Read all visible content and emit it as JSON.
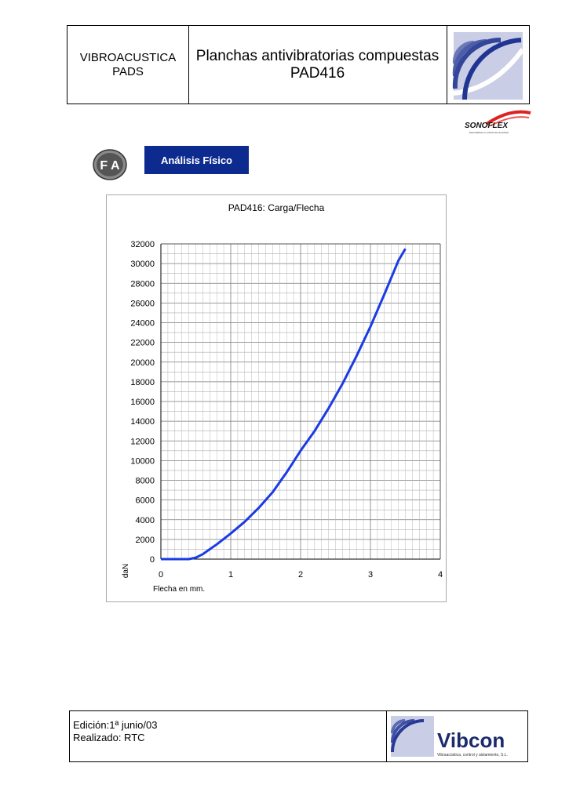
{
  "header": {
    "left_line1": "VIBROACUSTICA",
    "left_line2": "PADS",
    "title_line1": "Planchas antivibratorias compuestas",
    "title_line2": "PAD416"
  },
  "brand": {
    "sonoflex": "SONOFLEX",
    "sonoflex_tagline": "Especialistas en soluciones acústicas",
    "vibcon": "Vibcon",
    "vibcon_tagline": "Vibraacústica, control y aislamiento, S.L.",
    "fa_icon_text": "F A",
    "accent_color": "#0d2a8f",
    "curve_color": "#1a3be6"
  },
  "section": {
    "button_label": "Análisis Físico"
  },
  "chart_data": {
    "type": "line",
    "title": "PAD416: Carga/Flecha",
    "xlabel": "Flecha en mm.",
    "ylabel": "daN",
    "xlim": [
      0,
      4
    ],
    "ylim": [
      0,
      32000
    ],
    "x_ticks": [
      0,
      1,
      2,
      3,
      4
    ],
    "y_ticks": [
      0,
      2000,
      4000,
      6000,
      8000,
      10000,
      12000,
      14000,
      16000,
      18000,
      20000,
      22000,
      24000,
      26000,
      28000,
      30000,
      32000
    ],
    "grid": true,
    "series": [
      {
        "x": [
          0,
          0.2,
          0.4,
          0.5,
          0.6,
          0.7,
          0.8,
          1.0,
          1.2,
          1.4,
          1.6,
          1.8,
          2.0,
          2.2,
          2.4,
          2.6,
          2.8,
          3.0,
          3.2,
          3.4,
          3.5
        ],
        "values": [
          0,
          0,
          0,
          150,
          500,
          1000,
          1500,
          2600,
          3800,
          5200,
          6800,
          8800,
          11000,
          13000,
          15300,
          17800,
          20600,
          23600,
          26900,
          30300,
          31500
        ]
      }
    ]
  },
  "footer": {
    "edition": "Edición:1ª junio/03",
    "realizado": "Realizado: RTC"
  }
}
